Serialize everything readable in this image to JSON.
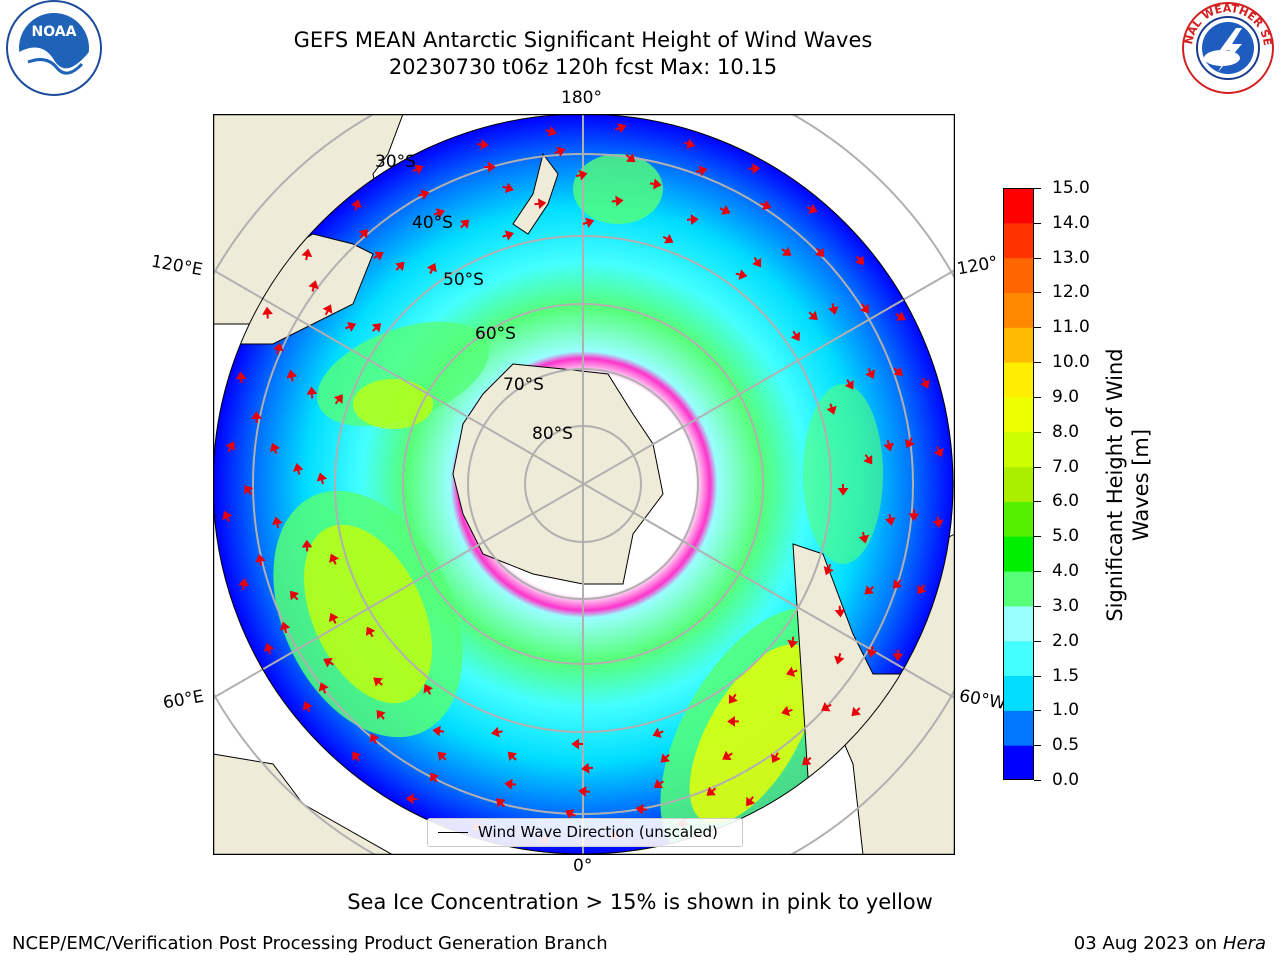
{
  "title": {
    "line1": "GEFS MEAN Antarctic Significant Height of Wind Waves",
    "line2": "20230730 t06z 120h fcst   Max: 10.15"
  },
  "logos": {
    "left": "noaa-logo",
    "right": "nws-logo",
    "left_text": "NOAA",
    "right_text": "NATIONAL WEATHER SERVICE"
  },
  "map": {
    "projection": "south-polar-stereographic",
    "lon_labels": {
      "top": "180°",
      "bottom": "0°",
      "upper_left": "120°E",
      "lower_left": "60°E",
      "upper_right": "120°",
      "lower_right": "60°W"
    },
    "lat_labels": [
      "30°S",
      "40°S",
      "50°S",
      "60°S",
      "70°S",
      "80°S"
    ],
    "legend_label": "Wind Wave Direction (unscaled)",
    "colors": {
      "land": "#efebd9",
      "ice_edge": "#ff33cc",
      "arrow": "#e8000b"
    }
  },
  "colorbar": {
    "label": "Significant Height of Wind Waves [m]",
    "label_line1": "Significant Height of Wind",
    "label_line2": "Waves [m]",
    "ticks": [
      "0.0",
      "0.5",
      "1.0",
      "1.5",
      "2.0",
      "3.0",
      "4.0",
      "5.0",
      "6.0",
      "7.0",
      "8.0",
      "9.0",
      "10.0",
      "11.0",
      "12.0",
      "13.0",
      "14.0",
      "15.0"
    ],
    "colors": [
      "#0000ff",
      "#0077ff",
      "#00ddff",
      "#44ffff",
      "#99ffff",
      "#55ff77",
      "#00ee00",
      "#55f000",
      "#aaee00",
      "#ccff00",
      "#eeff00",
      "#ffee00",
      "#ffbb00",
      "#ff8800",
      "#ff6600",
      "#ff3300",
      "#ff0000"
    ]
  },
  "note": "Sea Ice Concentration > 15% is shown in pink to yellow",
  "footer": {
    "left": "NCEP/EMC/Verification Post Processing Product Generation Branch",
    "right_date": "03 Aug 2023 on",
    "right_machine": "Hera"
  }
}
